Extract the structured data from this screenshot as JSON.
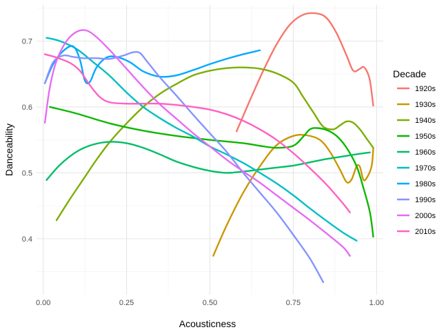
{
  "chart_data": {
    "type": "line",
    "title": "",
    "xlabel": "Acousticness",
    "ylabel": "Danceability",
    "xlim": [
      -0.02,
      1.02
    ],
    "ylim": [
      0.315,
      0.755
    ],
    "x_ticks": [
      0.0,
      0.25,
      0.5,
      0.75,
      1.0
    ],
    "x_tick_labels": [
      "0.00",
      "0.25",
      "0.50",
      "0.75",
      "1.00"
    ],
    "y_ticks": [
      0.4,
      0.5,
      0.6,
      0.7
    ],
    "y_tick_labels": [
      "0.4",
      "0.5",
      "0.6",
      "0.7"
    ],
    "grid": true,
    "legend_title": "Decade",
    "legend_position": "right",
    "series": [
      {
        "name": "1920s",
        "color": "#F8766D",
        "points": [
          [
            0.58,
            0.563
          ],
          [
            0.62,
            0.61
          ],
          [
            0.66,
            0.655
          ],
          [
            0.7,
            0.695
          ],
          [
            0.74,
            0.725
          ],
          [
            0.78,
            0.74
          ],
          [
            0.82,
            0.742
          ],
          [
            0.85,
            0.735
          ],
          [
            0.88,
            0.712
          ],
          [
            0.91,
            0.678
          ],
          [
            0.93,
            0.655
          ],
          [
            0.95,
            0.658
          ],
          [
            0.96,
            0.661
          ],
          [
            0.97,
            0.655
          ],
          [
            0.98,
            0.64
          ],
          [
            0.99,
            0.602
          ]
        ]
      },
      {
        "name": "1930s",
        "color": "#CD9600",
        "points": [
          [
            0.51,
            0.374
          ],
          [
            0.55,
            0.42
          ],
          [
            0.6,
            0.47
          ],
          [
            0.65,
            0.51
          ],
          [
            0.7,
            0.542
          ],
          [
            0.75,
            0.556
          ],
          [
            0.79,
            0.557
          ],
          [
            0.83,
            0.55
          ],
          [
            0.86,
            0.532
          ],
          [
            0.89,
            0.505
          ],
          [
            0.91,
            0.486
          ],
          [
            0.925,
            0.49
          ],
          [
            0.94,
            0.51
          ],
          [
            0.95,
            0.509
          ],
          [
            0.96,
            0.49
          ],
          [
            0.97,
            0.492
          ],
          [
            0.985,
            0.51
          ],
          [
            0.99,
            0.537
          ]
        ]
      },
      {
        "name": "1940s",
        "color": "#7CAE00",
        "points": [
          [
            0.04,
            0.428
          ],
          [
            0.08,
            0.46
          ],
          [
            0.12,
            0.49
          ],
          [
            0.16,
            0.52
          ],
          [
            0.2,
            0.547
          ],
          [
            0.25,
            0.575
          ],
          [
            0.3,
            0.6
          ],
          [
            0.35,
            0.62
          ],
          [
            0.4,
            0.635
          ],
          [
            0.45,
            0.648
          ],
          [
            0.5,
            0.655
          ],
          [
            0.55,
            0.659
          ],
          [
            0.6,
            0.66
          ],
          [
            0.65,
            0.658
          ],
          [
            0.7,
            0.651
          ],
          [
            0.75,
            0.637
          ],
          [
            0.78,
            0.615
          ],
          [
            0.81,
            0.592
          ],
          [
            0.84,
            0.57
          ],
          [
            0.87,
            0.566
          ],
          [
            0.89,
            0.572
          ],
          [
            0.91,
            0.578
          ],
          [
            0.93,
            0.576
          ],
          [
            0.95,
            0.566
          ],
          [
            0.97,
            0.552
          ],
          [
            0.99,
            0.538
          ]
        ]
      },
      {
        "name": "1950s",
        "color": "#0CB702",
        "points": [
          [
            0.02,
            0.6
          ],
          [
            0.1,
            0.59
          ],
          [
            0.2,
            0.575
          ],
          [
            0.3,
            0.564
          ],
          [
            0.4,
            0.556
          ],
          [
            0.5,
            0.55
          ],
          [
            0.6,
            0.545
          ],
          [
            0.65,
            0.541
          ],
          [
            0.7,
            0.538
          ],
          [
            0.75,
            0.541
          ],
          [
            0.78,
            0.555
          ],
          [
            0.8,
            0.566
          ],
          [
            0.82,
            0.568
          ],
          [
            0.85,
            0.565
          ],
          [
            0.88,
            0.556
          ],
          [
            0.91,
            0.538
          ],
          [
            0.94,
            0.51
          ],
          [
            0.96,
            0.478
          ],
          [
            0.98,
            0.44
          ],
          [
            0.99,
            0.403
          ]
        ]
      },
      {
        "name": "1960s",
        "color": "#00BE67",
        "points": [
          [
            0.01,
            0.489
          ],
          [
            0.05,
            0.512
          ],
          [
            0.1,
            0.532
          ],
          [
            0.15,
            0.543
          ],
          [
            0.2,
            0.547
          ],
          [
            0.25,
            0.545
          ],
          [
            0.3,
            0.538
          ],
          [
            0.35,
            0.528
          ],
          [
            0.4,
            0.517
          ],
          [
            0.45,
            0.509
          ],
          [
            0.5,
            0.503
          ],
          [
            0.55,
            0.5
          ],
          [
            0.6,
            0.502
          ],
          [
            0.65,
            0.505
          ],
          [
            0.7,
            0.508
          ],
          [
            0.75,
            0.511
          ],
          [
            0.8,
            0.516
          ],
          [
            0.85,
            0.521
          ],
          [
            0.9,
            0.525
          ],
          [
            0.95,
            0.529
          ],
          [
            0.98,
            0.531
          ]
        ]
      },
      {
        "name": "1970s",
        "color": "#00BFC4",
        "points": [
          [
            0.01,
            0.705
          ],
          [
            0.05,
            0.7
          ],
          [
            0.1,
            0.688
          ],
          [
            0.15,
            0.668
          ],
          [
            0.2,
            0.647
          ],
          [
            0.25,
            0.622
          ],
          [
            0.3,
            0.6
          ],
          [
            0.35,
            0.583
          ],
          [
            0.4,
            0.568
          ],
          [
            0.45,
            0.555
          ],
          [
            0.5,
            0.54
          ],
          [
            0.55,
            0.528
          ],
          [
            0.6,
            0.515
          ],
          [
            0.65,
            0.5
          ],
          [
            0.7,
            0.484
          ],
          [
            0.75,
            0.466
          ],
          [
            0.8,
            0.446
          ],
          [
            0.85,
            0.427
          ],
          [
            0.9,
            0.409
          ],
          [
            0.94,
            0.397
          ]
        ]
      },
      {
        "name": "1980s",
        "color": "#00A9FF",
        "points": [
          [
            0.005,
            0.636
          ],
          [
            0.03,
            0.665
          ],
          [
            0.06,
            0.685
          ],
          [
            0.09,
            0.692
          ],
          [
            0.11,
            0.672
          ],
          [
            0.125,
            0.64
          ],
          [
            0.14,
            0.638
          ],
          [
            0.16,
            0.66
          ],
          [
            0.19,
            0.675
          ],
          [
            0.22,
            0.676
          ],
          [
            0.26,
            0.668
          ],
          [
            0.3,
            0.654
          ],
          [
            0.35,
            0.646
          ],
          [
            0.4,
            0.648
          ],
          [
            0.45,
            0.656
          ],
          [
            0.5,
            0.665
          ],
          [
            0.55,
            0.673
          ],
          [
            0.6,
            0.68
          ],
          [
            0.65,
            0.686
          ]
        ]
      },
      {
        "name": "1990s",
        "color": "#8494FF",
        "points": [
          [
            0.005,
            0.636
          ],
          [
            0.03,
            0.668
          ],
          [
            0.06,
            0.678
          ],
          [
            0.09,
            0.676
          ],
          [
            0.12,
            0.674
          ],
          [
            0.16,
            0.674
          ],
          [
            0.2,
            0.673
          ],
          [
            0.24,
            0.678
          ],
          [
            0.27,
            0.683
          ],
          [
            0.29,
            0.682
          ],
          [
            0.31,
            0.67
          ],
          [
            0.35,
            0.645
          ],
          [
            0.4,
            0.617
          ],
          [
            0.45,
            0.588
          ],
          [
            0.5,
            0.56
          ],
          [
            0.55,
            0.532
          ],
          [
            0.6,
            0.5
          ],
          [
            0.65,
            0.47
          ],
          [
            0.7,
            0.44
          ],
          [
            0.75,
            0.406
          ],
          [
            0.8,
            0.37
          ],
          [
            0.84,
            0.334
          ]
        ]
      },
      {
        "name": "2000s",
        "color": "#E76BF3",
        "points": [
          [
            0.005,
            0.576
          ],
          [
            0.02,
            0.63
          ],
          [
            0.04,
            0.67
          ],
          [
            0.07,
            0.7
          ],
          [
            0.1,
            0.714
          ],
          [
            0.13,
            0.716
          ],
          [
            0.16,
            0.706
          ],
          [
            0.2,
            0.686
          ],
          [
            0.25,
            0.658
          ],
          [
            0.3,
            0.63
          ],
          [
            0.35,
            0.604
          ],
          [
            0.4,
            0.582
          ],
          [
            0.45,
            0.56
          ],
          [
            0.5,
            0.54
          ],
          [
            0.55,
            0.52
          ],
          [
            0.6,
            0.502
          ],
          [
            0.65,
            0.485
          ],
          [
            0.7,
            0.466
          ],
          [
            0.75,
            0.447
          ],
          [
            0.8,
            0.428
          ],
          [
            0.85,
            0.408
          ],
          [
            0.9,
            0.387
          ],
          [
            0.92,
            0.374
          ]
        ]
      },
      {
        "name": "2010s",
        "color": "#FF61C3",
        "points": [
          [
            0.005,
            0.68
          ],
          [
            0.04,
            0.675
          ],
          [
            0.08,
            0.667
          ],
          [
            0.11,
            0.655
          ],
          [
            0.14,
            0.633
          ],
          [
            0.17,
            0.615
          ],
          [
            0.2,
            0.607
          ],
          [
            0.25,
            0.605
          ],
          [
            0.3,
            0.605
          ],
          [
            0.35,
            0.605
          ],
          [
            0.4,
            0.603
          ],
          [
            0.45,
            0.6
          ],
          [
            0.5,
            0.596
          ],
          [
            0.55,
            0.589
          ],
          [
            0.6,
            0.579
          ],
          [
            0.65,
            0.566
          ],
          [
            0.7,
            0.55
          ],
          [
            0.75,
            0.53
          ],
          [
            0.8,
            0.507
          ],
          [
            0.85,
            0.482
          ],
          [
            0.9,
            0.453
          ],
          [
            0.92,
            0.44
          ]
        ]
      }
    ]
  }
}
